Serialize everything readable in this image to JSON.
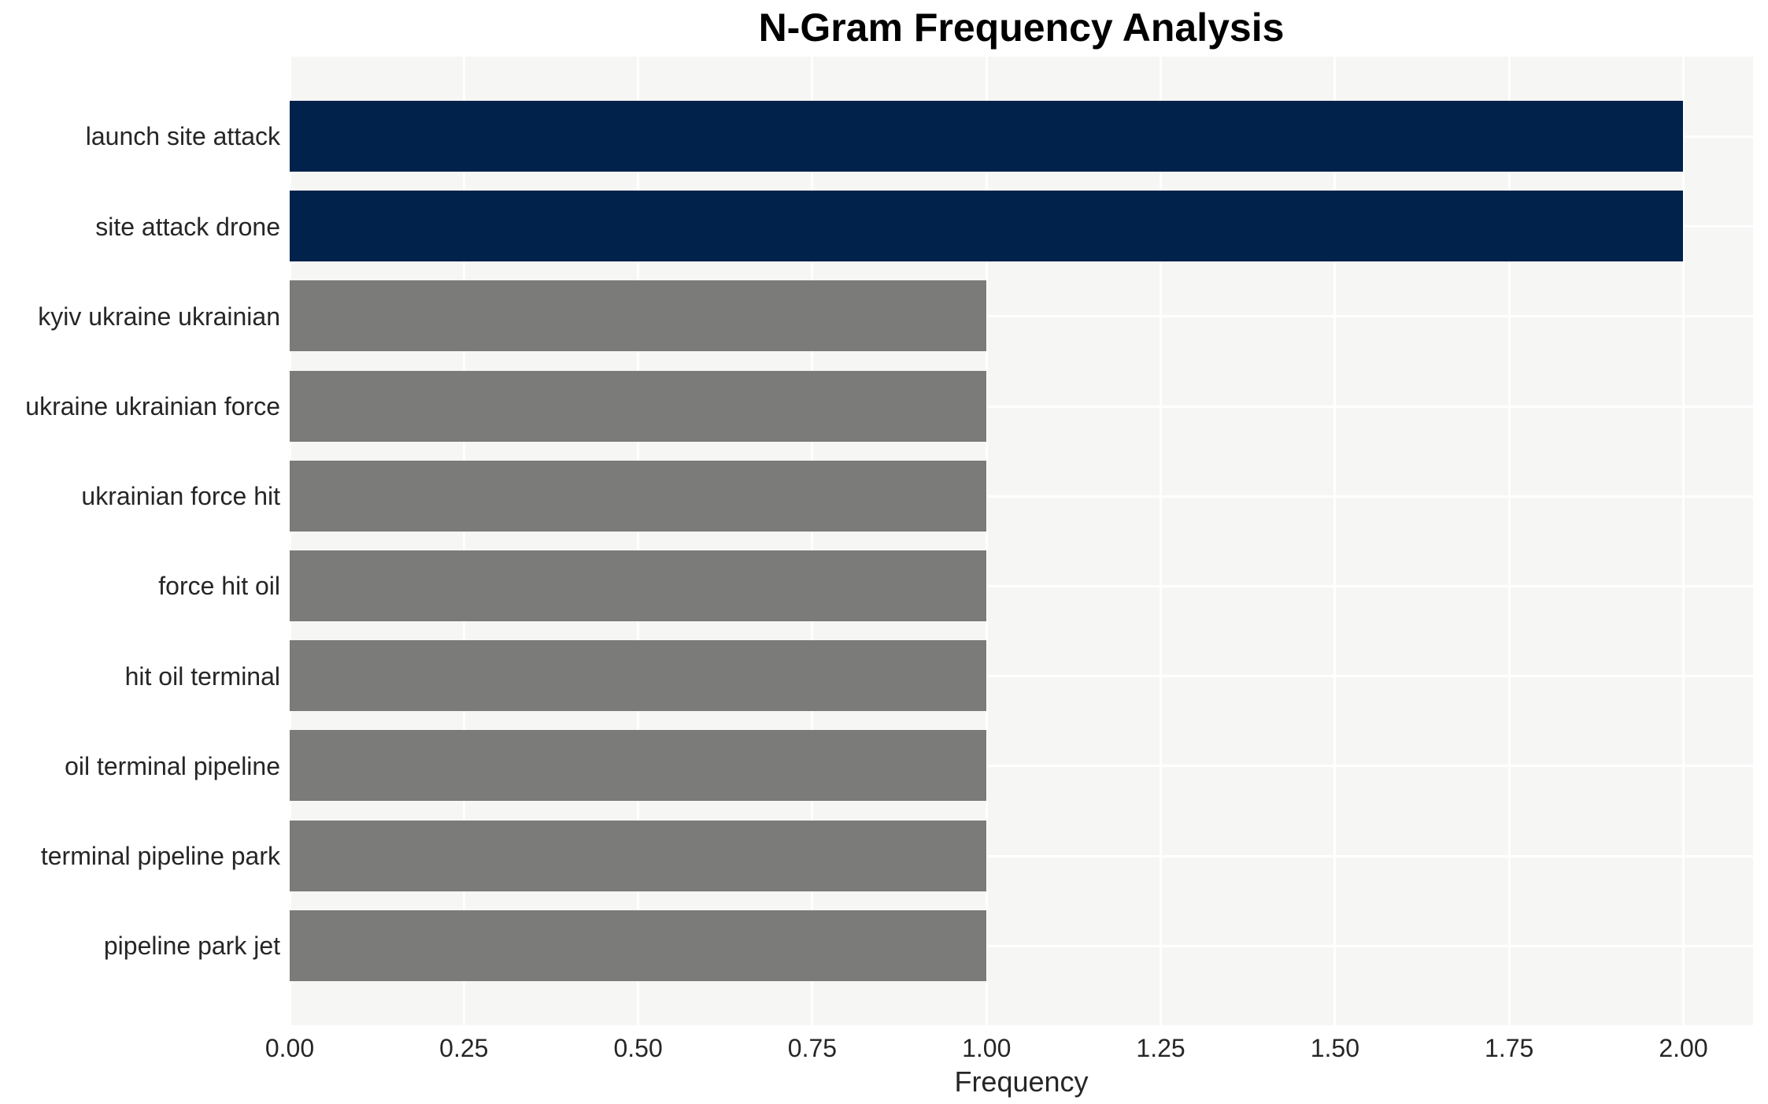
{
  "chart_data": {
    "type": "bar",
    "orientation": "horizontal",
    "title": "N-Gram Frequency Analysis",
    "xlabel": "Frequency",
    "ylabel": "",
    "legend": "none",
    "grid": "white gridlines on light gray plot background, both axes, grid below bars",
    "categories": [
      "launch site attack",
      "site attack drone",
      "kyiv ukraine ukrainian",
      "ukraine ukrainian force",
      "ukrainian force hit",
      "force hit oil",
      "hit oil terminal",
      "oil terminal pipeline",
      "terminal pipeline park",
      "pipeline park jet"
    ],
    "values": [
      2,
      2,
      1,
      1,
      1,
      1,
      1,
      1,
      1,
      1
    ],
    "bar_colors": [
      "#01224b",
      "#01224b",
      "#7b7b79",
      "#7b7b79",
      "#7b7b79",
      "#7b7b79",
      "#7b7b79",
      "#7b7b79",
      "#7b7b79",
      "#7b7b79"
    ],
    "xlim": [
      0,
      2.1
    ],
    "x_ticks": [
      {
        "value": 0.0,
        "label": "0.00"
      },
      {
        "value": 0.25,
        "label": "0.25"
      },
      {
        "value": 0.5,
        "label": "0.50"
      },
      {
        "value": 0.75,
        "label": "0.75"
      },
      {
        "value": 1.0,
        "label": "1.00"
      },
      {
        "value": 1.25,
        "label": "1.25"
      },
      {
        "value": 1.5,
        "label": "1.50"
      },
      {
        "value": 1.75,
        "label": "1.75"
      },
      {
        "value": 2.0,
        "label": "2.00"
      }
    ]
  },
  "colors": {
    "page_background": "#ffffff",
    "plot_background": "#f6f6f5",
    "gridline": "#ffffff",
    "bar_highlight": "#01224b",
    "bar_base": "#7b7b79",
    "tick_text": "#262626",
    "title_text": "#000000"
  }
}
